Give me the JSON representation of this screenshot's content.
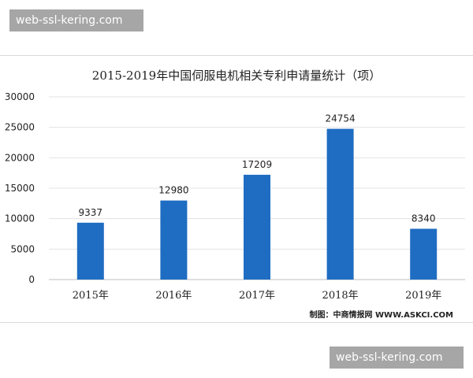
{
  "watermark": {
    "top_label": "web-ssl-kering.com",
    "bottom_label": "web-ssl-kering.com"
  },
  "chart_data": {
    "type": "bar",
    "title": "2015-2019年中国伺服电机相关专利申请量统计（项）",
    "categories": [
      "2015年",
      "2016年",
      "2017年",
      "2018年",
      "2019年"
    ],
    "values": [
      9337,
      12980,
      17209,
      24754,
      8340
    ],
    "ylim": [
      0,
      30000
    ],
    "yticks": [
      0,
      5000,
      10000,
      15000,
      20000,
      25000,
      30000
    ],
    "grid": true,
    "bar_color": "#1f6dc2",
    "source_note": "制图：中商情报网 WWW.ASKCI.COM"
  }
}
